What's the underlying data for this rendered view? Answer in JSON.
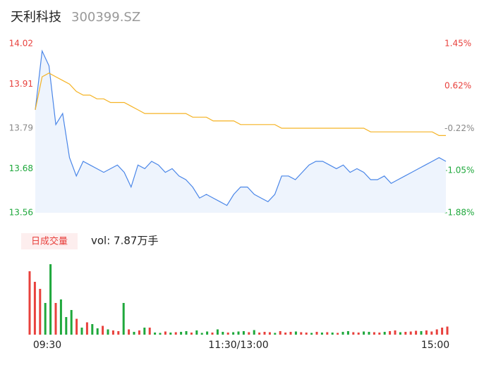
{
  "chart_data": [
    {
      "type": "line",
      "title": "天利科技",
      "subtitle": "300399.SZ",
      "x": [
        0,
        4,
        8,
        12,
        16,
        20,
        24,
        28,
        32,
        36,
        40,
        44,
        48,
        52,
        56,
        60,
        64,
        68,
        72,
        76,
        80,
        84,
        88,
        92,
        96,
        100,
        104,
        108,
        112,
        116,
        120,
        124,
        128,
        132,
        136,
        140,
        144,
        148,
        152,
        156,
        160,
        164,
        168,
        172,
        176,
        180,
        184,
        188,
        192,
        196,
        200,
        204,
        208,
        212,
        216,
        220,
        224,
        228,
        232,
        236,
        240
      ],
      "series": [
        {
          "color": "#4a86e8",
          "values": [
            13.84,
            14.0,
            13.96,
            13.8,
            13.83,
            13.71,
            13.66,
            13.7,
            13.69,
            13.68,
            13.67,
            13.68,
            13.69,
            13.67,
            13.63,
            13.69,
            13.68,
            13.7,
            13.69,
            13.67,
            13.68,
            13.66,
            13.65,
            13.63,
            13.6,
            13.61,
            13.6,
            13.59,
            13.58,
            13.61,
            13.63,
            13.63,
            13.61,
            13.6,
            13.59,
            13.61,
            13.66,
            13.66,
            13.65,
            13.67,
            13.69,
            13.7,
            13.7,
            13.69,
            13.68,
            13.69,
            13.67,
            13.68,
            13.67,
            13.65,
            13.65,
            13.66,
            13.64,
            13.65,
            13.66,
            13.67,
            13.68,
            13.69,
            13.7,
            13.71,
            13.7
          ]
        },
        {
          "color": "#f5b324",
          "values": [
            13.84,
            13.93,
            13.94,
            13.93,
            13.92,
            13.91,
            13.89,
            13.88,
            13.88,
            13.87,
            13.87,
            13.86,
            13.86,
            13.86,
            13.85,
            13.84,
            13.83,
            13.83,
            13.83,
            13.83,
            13.83,
            13.83,
            13.83,
            13.82,
            13.82,
            13.82,
            13.81,
            13.81,
            13.81,
            13.81,
            13.8,
            13.8,
            13.8,
            13.8,
            13.8,
            13.8,
            13.79,
            13.79,
            13.79,
            13.79,
            13.79,
            13.79,
            13.79,
            13.79,
            13.79,
            13.79,
            13.79,
            13.79,
            13.79,
            13.78,
            13.78,
            13.78,
            13.78,
            13.78,
            13.78,
            13.78,
            13.78,
            13.78,
            13.78,
            13.77,
            13.77
          ]
        }
      ],
      "xlim": [
        0,
        240
      ],
      "ylim": [
        13.56,
        14.02
      ],
      "yticks": [
        14.02,
        13.91,
        13.79,
        13.68,
        13.56
      ],
      "y2lim": [
        -1.88,
        1.45
      ],
      "y2ticks": [
        {
          "value": 1.45,
          "label": "1.45%"
        },
        {
          "value": 0.62,
          "label": "0.62%"
        },
        {
          "value": -0.22,
          "label": "-0.22%"
        },
        {
          "value": -1.05,
          "label": "-1.05%"
        },
        {
          "value": -1.88,
          "label": "-1.88%"
        }
      ],
      "tick_colors": [
        "#e8413d",
        "#e8413d",
        "#888888",
        "#1fa83c",
        "#1fa83c"
      ],
      "area_color": "#eef4fd"
    },
    {
      "type": "bar",
      "title": "日成交量",
      "annotation": "vol: 7.87万手",
      "x": [
        0,
        3,
        6,
        9,
        12,
        15,
        18,
        21,
        24,
        27,
        30,
        33,
        36,
        39,
        42,
        45,
        48,
        51,
        54,
        57,
        60,
        63,
        66,
        69,
        72,
        75,
        78,
        81,
        84,
        87,
        90,
        93,
        96,
        99,
        102,
        105,
        108,
        111,
        114,
        117,
        120,
        123,
        126,
        129,
        132,
        135,
        138,
        141,
        144,
        147,
        150,
        153,
        156,
        159,
        162,
        165,
        168,
        171,
        174,
        177,
        180,
        183,
        186,
        189,
        192,
        195,
        198,
        201,
        204,
        207,
        210,
        213,
        216,
        219,
        222,
        225,
        228,
        231,
        234,
        237,
        240
      ],
      "values": [
        1800,
        1500,
        1300,
        900,
        2000,
        900,
        1000,
        500,
        700,
        450,
        200,
        350,
        300,
        180,
        250,
        150,
        120,
        100,
        900,
        150,
        80,
        120,
        200,
        200,
        60,
        50,
        90,
        60,
        70,
        80,
        100,
        60,
        120,
        50,
        90,
        60,
        150,
        80,
        60,
        70,
        90,
        100,
        70,
        130,
        60,
        80,
        70,
        50,
        100,
        60,
        80,
        90,
        70,
        60,
        50,
        80,
        60,
        70,
        60,
        50,
        80,
        100,
        70,
        60,
        90,
        80,
        70,
        60,
        80,
        100,
        120,
        70,
        80,
        90,
        110,
        100,
        120,
        90,
        150,
        200,
        230
      ],
      "colors": [
        "#e8413d",
        "#e8413d",
        "#e8413d",
        "#1fa83c",
        "#1fa83c",
        "#e8413d",
        "#1fa83c",
        "#1fa83c",
        "#1fa83c",
        "#e8413d",
        "#1fa83c",
        "#e8413d",
        "#1fa83c",
        "#1fa83c",
        "#e8413d",
        "#1fa83c",
        "#e8413d",
        "#e8413d",
        "#1fa83c",
        "#e8413d",
        "#1fa83c",
        "#e8413d",
        "#1fa83c",
        "#e8413d",
        "#1fa83c",
        "#1fa83c",
        "#e8413d",
        "#1fa83c",
        "#e8413d",
        "#1fa83c",
        "#1fa83c",
        "#e8413d",
        "#1fa83c",
        "#1fa83c",
        "#1fa83c",
        "#e8413d",
        "#1fa83c",
        "#1fa83c",
        "#e8413d",
        "#1fa83c",
        "#1fa83c",
        "#1fa83c",
        "#e8413d",
        "#1fa83c",
        "#e8413d",
        "#e8413d",
        "#e8413d",
        "#1fa83c",
        "#e8413d",
        "#e8413d",
        "#e8413d",
        "#1fa83c",
        "#e8413d",
        "#e8413d",
        "#1fa83c",
        "#e8413d",
        "#1fa83c",
        "#e8413d",
        "#1fa83c",
        "#e8413d",
        "#1fa83c",
        "#1fa83c",
        "#e8413d",
        "#e8413d",
        "#1fa83c",
        "#1fa83c",
        "#e8413d",
        "#e8413d",
        "#1fa83c",
        "#e8413d",
        "#e8413d",
        "#1fa83c",
        "#e8413d",
        "#e8413d",
        "#e8413d",
        "#1fa83c",
        "#e8413d",
        "#e8413d",
        "#e8413d",
        "#e8413d",
        "#e8413d"
      ],
      "xlim": [
        0,
        240
      ],
      "ylim": [
        0,
        2000
      ],
      "xticks": [
        {
          "value": 0,
          "label": "09:30"
        },
        {
          "value": 120,
          "label": "11:30/13:00"
        },
        {
          "value": 240,
          "label": "15:00"
        }
      ]
    }
  ]
}
